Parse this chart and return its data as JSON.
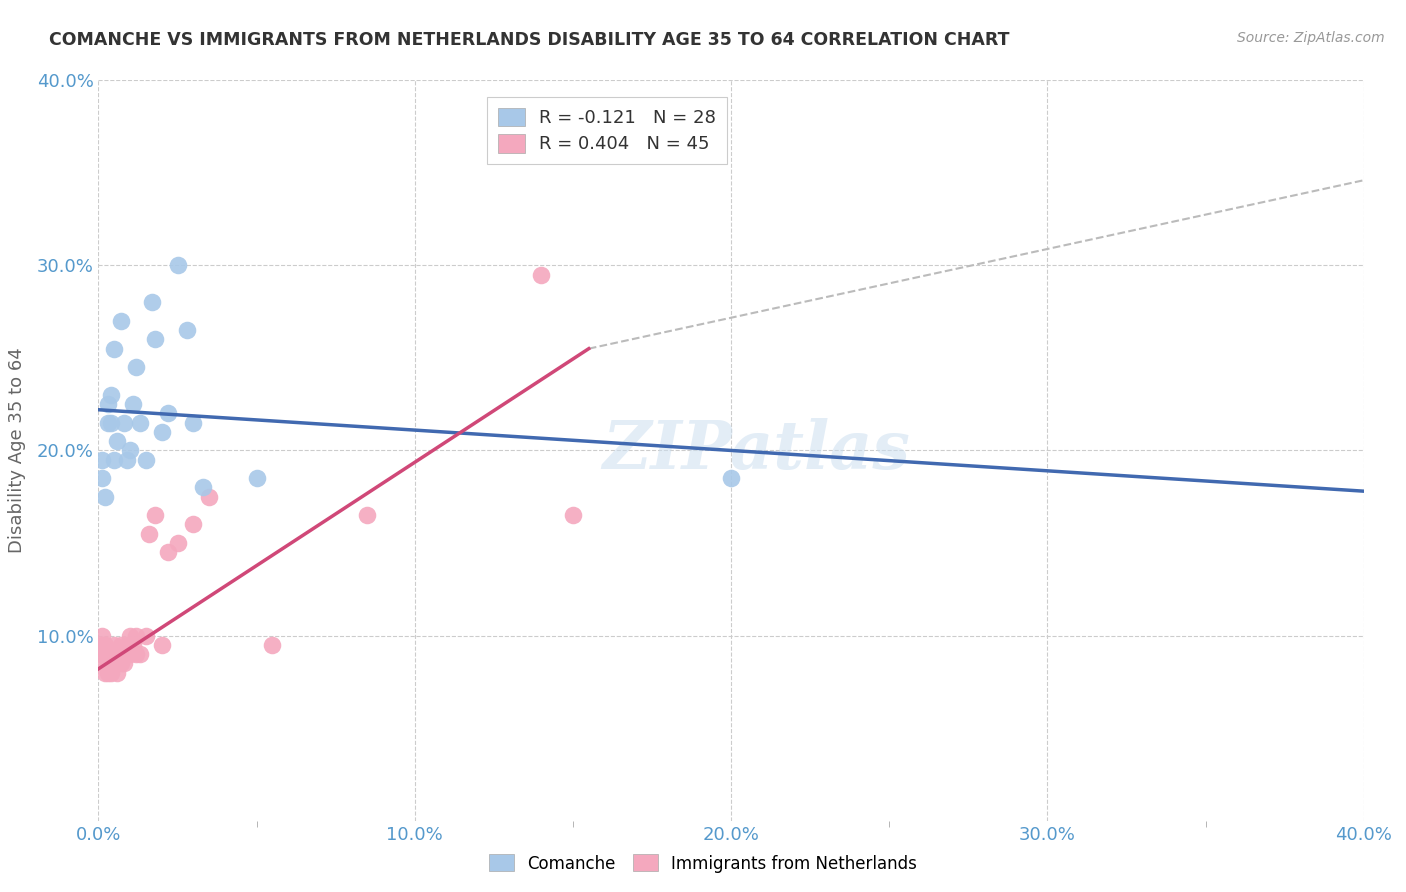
{
  "title": "COMANCHE VS IMMIGRANTS FROM NETHERLANDS DISABILITY AGE 35 TO 64 CORRELATION CHART",
  "source": "Source: ZipAtlas.com",
  "ylabel": "Disability Age 35 to 64",
  "xlim": [
    0.0,
    0.4
  ],
  "ylim": [
    0.0,
    0.4
  ],
  "xtick_labels": [
    "0.0%",
    "",
    "10.0%",
    "",
    "20.0%",
    "",
    "30.0%",
    "",
    "40.0%"
  ],
  "xtick_vals": [
    0.0,
    0.05,
    0.1,
    0.15,
    0.2,
    0.25,
    0.3,
    0.35,
    0.4
  ],
  "ytick_labels": [
    "10.0%",
    "20.0%",
    "30.0%",
    "40.0%"
  ],
  "ytick_vals": [
    0.1,
    0.2,
    0.3,
    0.4
  ],
  "legend1_label": "R = -0.121   N = 28",
  "legend2_label": "R = 0.404   N = 45",
  "blue_color": "#A8C8E8",
  "pink_color": "#F4A8BE",
  "blue_line_color": "#4169B0",
  "pink_line_color": "#D04878",
  "watermark": "ZIPatlas",
  "blue_line_x0": 0.0,
  "blue_line_y0": 0.222,
  "blue_line_x1": 0.4,
  "blue_line_y1": 0.178,
  "pink_line_x0": 0.0,
  "pink_line_y0": 0.082,
  "pink_line_x1": 0.155,
  "pink_line_y1": 0.255,
  "dash_line_x0": 0.155,
  "dash_line_y0": 0.255,
  "dash_line_x1": 0.4,
  "dash_line_y1": 0.346,
  "comanche_x": [
    0.001,
    0.001,
    0.002,
    0.003,
    0.003,
    0.004,
    0.004,
    0.005,
    0.005,
    0.006,
    0.007,
    0.008,
    0.009,
    0.01,
    0.011,
    0.012,
    0.013,
    0.015,
    0.017,
    0.018,
    0.02,
    0.022,
    0.025,
    0.028,
    0.03,
    0.033,
    0.05,
    0.2
  ],
  "comanche_y": [
    0.185,
    0.195,
    0.175,
    0.215,
    0.225,
    0.215,
    0.23,
    0.195,
    0.255,
    0.205,
    0.27,
    0.215,
    0.195,
    0.2,
    0.225,
    0.245,
    0.215,
    0.195,
    0.28,
    0.26,
    0.21,
    0.22,
    0.3,
    0.265,
    0.215,
    0.18,
    0.185,
    0.185
  ],
  "netherlands_x": [
    0.001,
    0.001,
    0.001,
    0.001,
    0.002,
    0.002,
    0.002,
    0.002,
    0.003,
    0.003,
    0.003,
    0.004,
    0.004,
    0.004,
    0.005,
    0.005,
    0.005,
    0.006,
    0.006,
    0.006,
    0.007,
    0.007,
    0.007,
    0.008,
    0.008,
    0.009,
    0.009,
    0.01,
    0.01,
    0.011,
    0.012,
    0.012,
    0.013,
    0.015,
    0.016,
    0.018,
    0.02,
    0.022,
    0.025,
    0.03,
    0.035,
    0.055,
    0.085,
    0.14,
    0.15
  ],
  "netherlands_y": [
    0.09,
    0.09,
    0.095,
    0.1,
    0.08,
    0.085,
    0.09,
    0.095,
    0.08,
    0.085,
    0.09,
    0.08,
    0.085,
    0.09,
    0.085,
    0.09,
    0.095,
    0.08,
    0.085,
    0.09,
    0.085,
    0.09,
    0.095,
    0.085,
    0.09,
    0.09,
    0.095,
    0.09,
    0.1,
    0.095,
    0.09,
    0.1,
    0.09,
    0.1,
    0.155,
    0.165,
    0.095,
    0.145,
    0.15,
    0.16,
    0.175,
    0.095,
    0.165,
    0.295,
    0.165
  ]
}
